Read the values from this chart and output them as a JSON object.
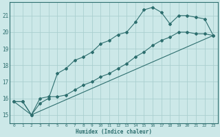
{
  "xlabel": "Humidex (Indice chaleur)",
  "bg_color": "#cce8e8",
  "grid_color": "#aacfcf",
  "line_color": "#2d6e6e",
  "xlim": [
    -0.5,
    23.5
  ],
  "ylim": [
    14.5,
    21.8
  ],
  "yticks": [
    15,
    16,
    17,
    18,
    19,
    20,
    21
  ],
  "xticks": [
    0,
    1,
    2,
    3,
    4,
    5,
    6,
    7,
    8,
    9,
    10,
    11,
    12,
    13,
    14,
    15,
    16,
    17,
    18,
    19,
    20,
    21,
    22,
    23
  ],
  "line1_x": [
    0,
    1,
    2,
    3,
    4,
    5,
    6,
    7,
    8,
    9,
    10,
    11,
    12,
    13,
    14,
    15,
    16,
    17,
    18,
    19,
    20,
    21,
    22,
    23
  ],
  "line1_y": [
    15.8,
    15.8,
    15.0,
    15.7,
    16.0,
    17.5,
    17.8,
    18.3,
    18.5,
    18.8,
    19.3,
    19.5,
    19.85,
    20.0,
    20.6,
    21.35,
    21.5,
    21.2,
    20.5,
    21.0,
    21.0,
    20.9,
    20.8,
    19.8
  ],
  "line2_x": [
    0,
    1,
    2,
    3,
    4,
    5,
    6,
    7,
    8,
    9,
    10,
    11,
    12,
    13,
    14,
    15,
    16,
    17,
    18,
    19,
    20,
    21,
    22,
    23
  ],
  "line2_y": [
    15.8,
    15.8,
    15.0,
    16.0,
    16.1,
    16.1,
    16.2,
    16.5,
    16.8,
    17.0,
    17.3,
    17.5,
    17.8,
    18.1,
    18.5,
    18.8,
    19.2,
    19.5,
    19.7,
    20.0,
    20.0,
    19.9,
    19.9,
    19.8
  ],
  "line3_x": [
    0,
    2,
    23
  ],
  "line3_y": [
    15.8,
    15.0,
    19.8
  ]
}
